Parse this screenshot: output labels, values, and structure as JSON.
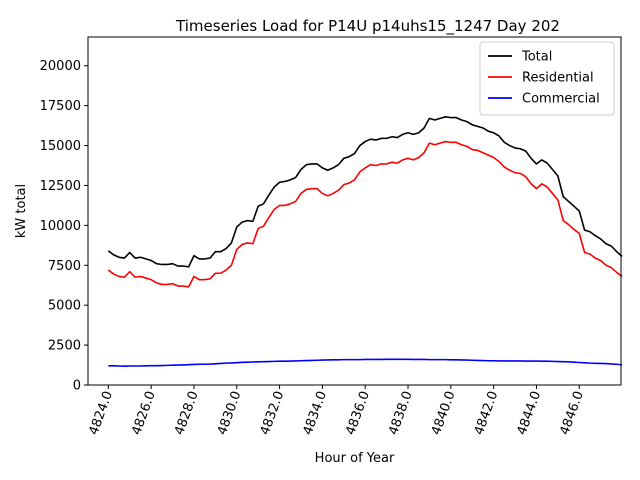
{
  "chart_data": {
    "type": "line",
    "title": "Timeseries Load for P14U p14uhs15_1247  Day 202",
    "xlabel": "Hour of Year",
    "ylabel": "kW total",
    "xlim": [
      4823.05,
      4847.95
    ],
    "ylim": [
      0,
      21800
    ],
    "xticks": [
      4824,
      4826,
      4828,
      4830,
      4832,
      4834,
      4836,
      4838,
      4840,
      4842,
      4844,
      4846
    ],
    "xtick_labels": [
      "4824.0",
      "4826.0",
      "4828.0",
      "4830.0",
      "4832.0",
      "4834.0",
      "4836.0",
      "4838.0",
      "4840.0",
      "4842.0",
      "4844.0",
      "4846.0"
    ],
    "yticks": [
      0,
      2500,
      5000,
      7500,
      10000,
      12500,
      15000,
      17500,
      20000
    ],
    "ytick_labels": [
      "0",
      "2500",
      "5000",
      "7500",
      "10000",
      "12500",
      "15000",
      "17500",
      "20000"
    ],
    "legend_position": "top-right",
    "x_start": 4824,
    "x_step": 0.25,
    "series": [
      {
        "name": "Total",
        "color": "#000000",
        "values": [
          8400,
          8150,
          8000,
          7950,
          8300,
          7950,
          8000,
          7900,
          7800,
          7600,
          7550,
          7550,
          7600,
          7450,
          7450,
          7400,
          8100,
          7900,
          7900,
          7950,
          8350,
          8350,
          8550,
          8900,
          9900,
          10200,
          10300,
          10250,
          11200,
          11350,
          11900,
          12400,
          12700,
          12750,
          12850,
          13000,
          13500,
          13800,
          13850,
          13850,
          13600,
          13450,
          13600,
          13800,
          14200,
          14300,
          14500,
          15000,
          15250,
          15400,
          15350,
          15450,
          15450,
          15550,
          15500,
          15700,
          15800,
          15700,
          15800,
          16100,
          16700,
          16600,
          16700,
          16800,
          16750,
          16750,
          16600,
          16500,
          16300,
          16200,
          16100,
          15900,
          15800,
          15600,
          15200,
          15000,
          14850,
          14800,
          14650,
          14200,
          13850,
          14100,
          13900,
          13500,
          13100,
          11800,
          11500,
          11200,
          10900,
          9700,
          9600,
          9350,
          9150,
          8850,
          8700,
          8350,
          8050
        ]
      },
      {
        "name": "Residential",
        "color": "#ff0000",
        "values": [
          7200,
          6950,
          6800,
          6750,
          7100,
          6750,
          6800,
          6700,
          6600,
          6400,
          6300,
          6300,
          6350,
          6200,
          6200,
          6150,
          6800,
          6600,
          6600,
          6650,
          7000,
          7000,
          7200,
          7500,
          8500,
          8800,
          8900,
          8850,
          9800,
          9950,
          10500,
          11000,
          11250,
          11250,
          11350,
          11500,
          12000,
          12250,
          12300,
          12300,
          12000,
          11850,
          12000,
          12200,
          12550,
          12650,
          12850,
          13350,
          13600,
          13800,
          13750,
          13850,
          13850,
          13950,
          13900,
          14100,
          14200,
          14100,
          14250,
          14550,
          15150,
          15050,
          15150,
          15250,
          15200,
          15200,
          15050,
          14950,
          14750,
          14700,
          14550,
          14400,
          14250,
          14000,
          13650,
          13450,
          13300,
          13250,
          13050,
          12600,
          12300,
          12600,
          12400,
          12000,
          11600,
          10300,
          10050,
          9750,
          9500,
          8300,
          8200,
          7950,
          7800,
          7500,
          7350,
          7050,
          6800
        ]
      },
      {
        "name": "Commercial",
        "color": "#0000ff",
        "values": [
          1200,
          1200,
          1190,
          1180,
          1190,
          1190,
          1190,
          1200,
          1210,
          1210,
          1220,
          1230,
          1240,
          1250,
          1260,
          1270,
          1290,
          1300,
          1300,
          1310,
          1330,
          1350,
          1370,
          1380,
          1400,
          1420,
          1430,
          1440,
          1450,
          1460,
          1470,
          1480,
          1490,
          1490,
          1500,
          1510,
          1520,
          1530,
          1540,
          1550,
          1560,
          1570,
          1580,
          1580,
          1590,
          1590,
          1590,
          1590,
          1600,
          1600,
          1600,
          1600,
          1610,
          1610,
          1610,
          1610,
          1610,
          1600,
          1600,
          1600,
          1590,
          1590,
          1590,
          1590,
          1580,
          1580,
          1570,
          1560,
          1550,
          1540,
          1530,
          1520,
          1520,
          1510,
          1510,
          1510,
          1510,
          1510,
          1500,
          1500,
          1500,
          1490,
          1490,
          1480,
          1470,
          1460,
          1450,
          1430,
          1410,
          1390,
          1370,
          1360,
          1350,
          1340,
          1320,
          1300,
          1260
        ]
      }
    ]
  }
}
